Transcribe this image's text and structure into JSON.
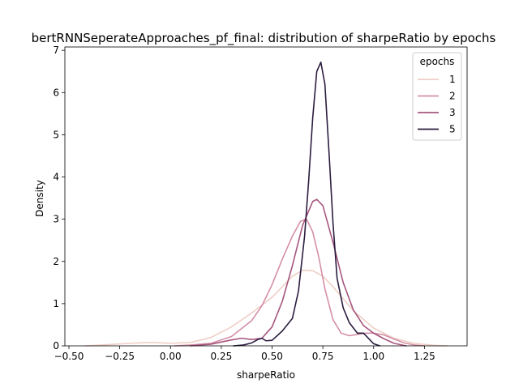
{
  "chart_data": {
    "type": "line",
    "title": "bertRNNSeperateApproaches_pf_final: distribution of sharpeRatio by epochs",
    "xlabel": "sharpeRatio",
    "ylabel": "Density",
    "xlim": [
      -0.52,
      1.46
    ],
    "ylim": [
      0,
      7.08
    ],
    "xticks": [
      -0.5,
      -0.25,
      0.0,
      0.25,
      0.5,
      0.75,
      1.0,
      1.25
    ],
    "xtick_labels": [
      "−0.50",
      "−0.25",
      "0.00",
      "0.25",
      "0.50",
      "0.75",
      "1.00",
      "1.25"
    ],
    "yticks": [
      0,
      1,
      2,
      3,
      4,
      5,
      6,
      7
    ],
    "ytick_labels": [
      "0",
      "1",
      "2",
      "3",
      "4",
      "5",
      "6",
      "7"
    ],
    "grid": false,
    "legend": {
      "title": "epochs",
      "placement": "top-right"
    },
    "series": [
      {
        "name": "1",
        "color": "#efcec6",
        "x": [
          -0.42,
          -0.3,
          -0.2,
          -0.1,
          0.0,
          0.1,
          0.2,
          0.3,
          0.4,
          0.5,
          0.6,
          0.65,
          0.7,
          0.75,
          0.8,
          0.9,
          1.0,
          1.1,
          1.2,
          1.3,
          1.36
        ],
        "y": [
          0.0,
          0.03,
          0.06,
          0.08,
          0.06,
          0.08,
          0.2,
          0.45,
          0.78,
          1.15,
          1.65,
          1.79,
          1.78,
          1.65,
          1.4,
          0.83,
          0.42,
          0.18,
          0.06,
          0.01,
          0.0
        ]
      },
      {
        "name": "2",
        "color": "#d48fa7",
        "x": [
          0.02,
          0.1,
          0.2,
          0.3,
          0.4,
          0.45,
          0.5,
          0.55,
          0.6,
          0.64,
          0.67,
          0.7,
          0.73,
          0.76,
          0.8,
          0.84,
          0.88,
          0.92,
          0.96,
          1.0,
          1.05,
          1.1,
          1.15,
          1.2,
          1.25
        ],
        "y": [
          0.0,
          0.02,
          0.06,
          0.22,
          0.6,
          0.95,
          1.45,
          2.05,
          2.6,
          2.95,
          3.0,
          2.7,
          2.1,
          1.35,
          0.62,
          0.3,
          0.24,
          0.27,
          0.3,
          0.3,
          0.26,
          0.16,
          0.07,
          0.02,
          0.0
        ]
      },
      {
        "name": "3",
        "color": "#a6567e",
        "x": [
          0.1,
          0.2,
          0.3,
          0.35,
          0.4,
          0.45,
          0.5,
          0.55,
          0.6,
          0.65,
          0.7,
          0.72,
          0.75,
          0.8,
          0.85,
          0.9,
          0.95,
          1.0,
          1.05,
          1.1,
          1.16
        ],
        "y": [
          0.0,
          0.04,
          0.14,
          0.18,
          0.15,
          0.18,
          0.45,
          1.05,
          1.9,
          2.85,
          3.42,
          3.47,
          3.32,
          2.45,
          1.5,
          0.85,
          0.48,
          0.3,
          0.17,
          0.06,
          0.0
        ]
      },
      {
        "name": "5",
        "color": "#2b1d3f",
        "x": [
          0.31,
          0.36,
          0.4,
          0.43,
          0.45,
          0.47,
          0.5,
          0.55,
          0.6,
          0.63,
          0.66,
          0.68,
          0.7,
          0.72,
          0.74,
          0.76,
          0.78,
          0.8,
          0.82,
          0.85,
          0.88,
          0.92,
          0.95,
          0.98,
          1.0,
          1.03
        ],
        "y": [
          0.0,
          0.02,
          0.07,
          0.15,
          0.18,
          0.12,
          0.13,
          0.35,
          0.65,
          1.3,
          2.6,
          3.9,
          5.4,
          6.5,
          6.72,
          6.2,
          4.6,
          2.9,
          1.6,
          0.9,
          0.55,
          0.3,
          0.3,
          0.15,
          0.05,
          0.0
        ]
      }
    ]
  }
}
